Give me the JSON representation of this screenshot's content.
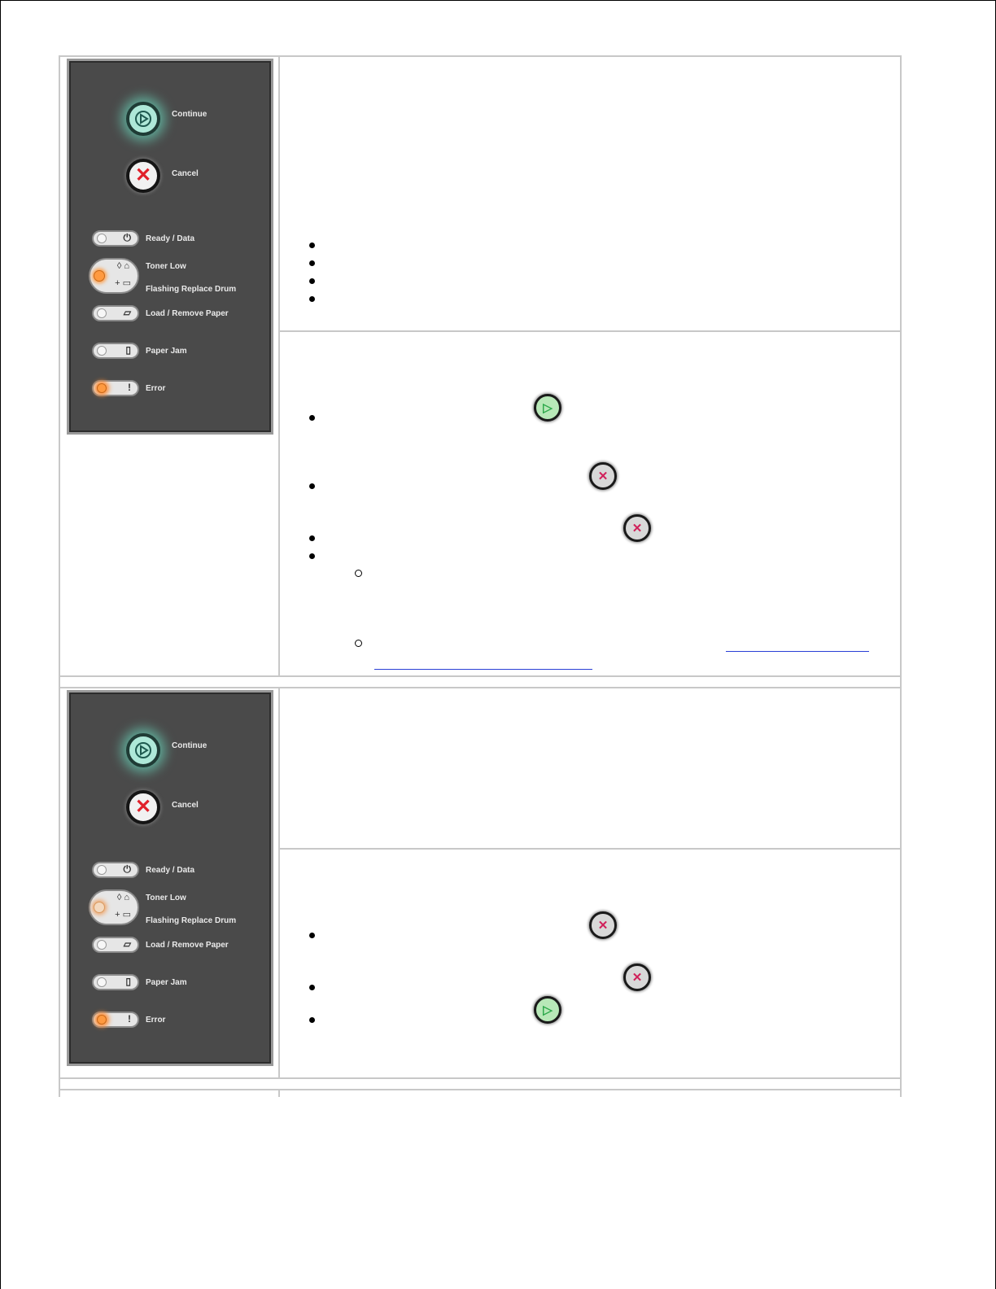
{
  "panel": {
    "continue_label": "Continue",
    "cancel_label": "Cancel",
    "ready_label": "Ready / Data",
    "toner_low_label": "Toner Low",
    "replace_drum_label": "Flashing Replace Drum",
    "load_paper_label": "Load / Remove Paper",
    "paper_jam_label": "Paper Jam",
    "error_label": "Error"
  },
  "colors": {
    "panel_bg": "#4a4a4a",
    "continue_glow": "#5fa896",
    "led_orange": "#ff9a40",
    "link_blue": "#2a3fd6"
  },
  "icons": {
    "continue": "continue-button-icon",
    "cancel": "cancel-button-icon"
  }
}
